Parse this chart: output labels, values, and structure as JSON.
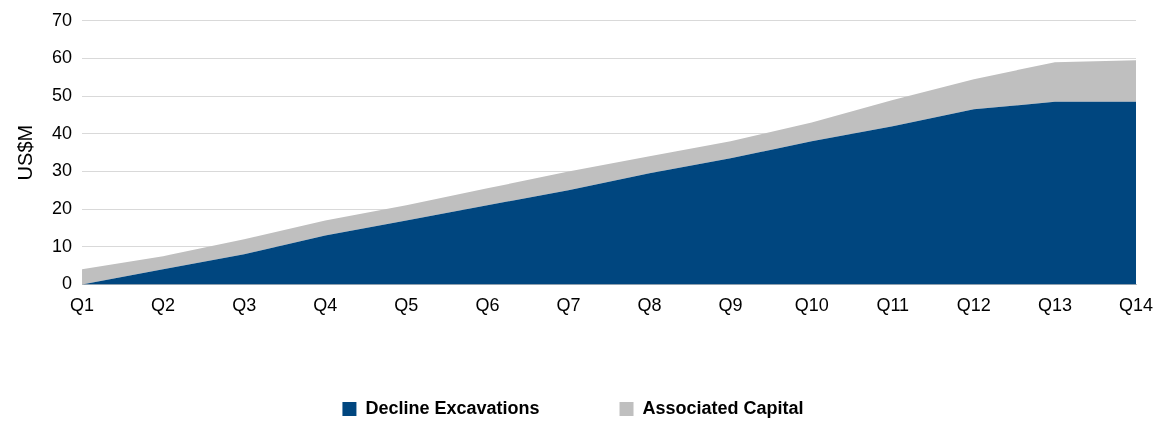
{
  "chart_data": {
    "type": "area",
    "stacked": true,
    "ylabel": "US$M",
    "categories": [
      "Q1",
      "Q2",
      "Q3",
      "Q4",
      "Q5",
      "Q6",
      "Q7",
      "Q8",
      "Q9",
      "Q10",
      "Q11",
      "Q12",
      "Q13",
      "Q14"
    ],
    "series": [
      {
        "name": "Decline Excavations",
        "color": "#00467f",
        "values": [
          0,
          4,
          8,
          13,
          17,
          21,
          25,
          29.5,
          33.5,
          38,
          42,
          46.5,
          48.5,
          48.5
        ]
      },
      {
        "name": "Associated Capital",
        "color": "#bfbfbf",
        "values": [
          4,
          3.5,
          4,
          4,
          4,
          4.5,
          5,
          4.5,
          4.5,
          5,
          7,
          8,
          10.5,
          11
        ]
      }
    ],
    "ylim": [
      0,
      70
    ],
    "yticks": [
      0,
      10,
      20,
      30,
      40,
      50,
      60,
      70
    ],
    "grid": "y",
    "legend": "bottom"
  }
}
